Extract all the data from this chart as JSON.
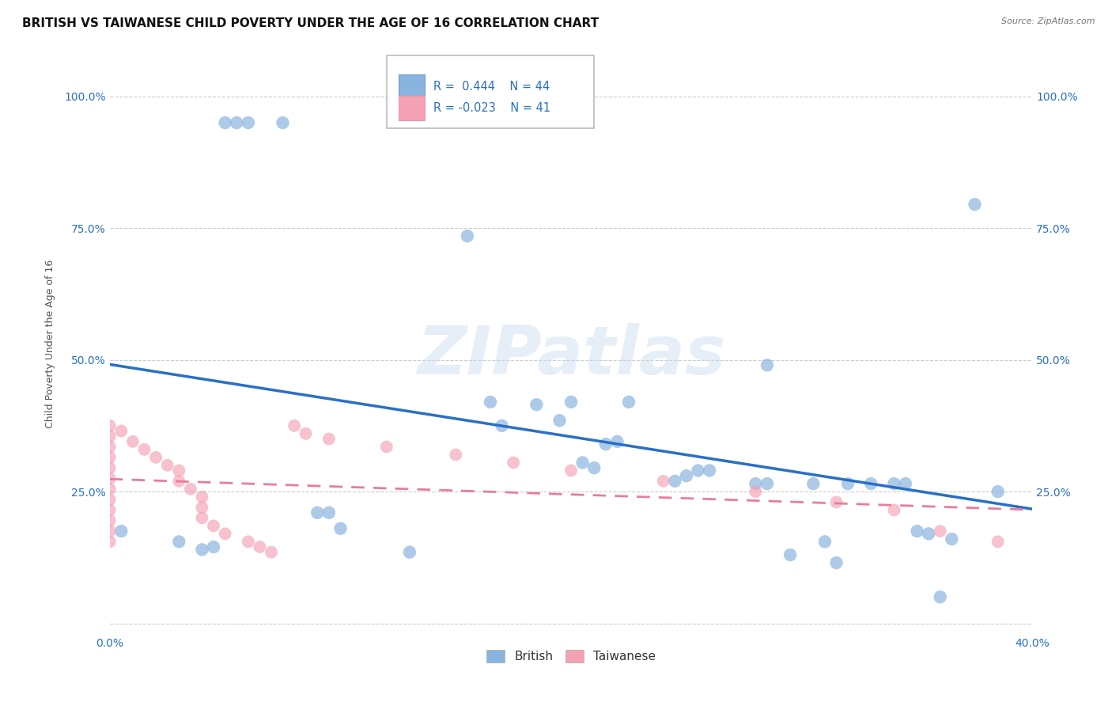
{
  "title": "BRITISH VS TAIWANESE CHILD POVERTY UNDER THE AGE OF 16 CORRELATION CHART",
  "source": "Source: ZipAtlas.com",
  "ylabel": "Child Poverty Under the Age of 16",
  "background_color": "#ffffff",
  "watermark": "ZIPatlas",
  "legend_british": "British",
  "legend_taiwanese": "Taiwanese",
  "r_british": 0.444,
  "n_british": 44,
  "r_taiwanese": -0.023,
  "n_taiwanese": 41,
  "british_color": "#8ab4e0",
  "taiwanese_color": "#f4a0b5",
  "british_line_color": "#2970c4",
  "taiwanese_line_color": "#e87d9b",
  "xlim": [
    0.0,
    0.4
  ],
  "ylim": [
    -0.02,
    1.08
  ],
  "xticks": [
    0.0,
    0.1,
    0.2,
    0.3,
    0.4
  ],
  "yticks": [
    0.0,
    0.25,
    0.5,
    0.75,
    1.0
  ],
  "xtick_labels": [
    "0.0%",
    "",
    "",
    "",
    "40.0%"
  ],
  "ytick_labels": [
    "",
    "25.0%",
    "50.0%",
    "75.0%",
    "100.0%"
  ],
  "british_x": [
    0.005,
    0.03,
    0.04,
    0.045,
    0.05,
    0.055,
    0.06,
    0.075,
    0.09,
    0.095,
    0.1,
    0.13,
    0.155,
    0.165,
    0.17,
    0.185,
    0.195,
    0.2,
    0.205,
    0.21,
    0.215,
    0.22,
    0.225,
    0.245,
    0.25,
    0.255,
    0.26,
    0.28,
    0.285,
    0.295,
    0.305,
    0.31,
    0.315,
    0.32,
    0.33,
    0.34,
    0.35,
    0.355,
    0.285,
    0.345,
    0.36,
    0.365,
    0.375,
    0.385
  ],
  "british_y": [
    0.175,
    0.155,
    0.14,
    0.145,
    0.95,
    0.95,
    0.95,
    0.95,
    0.21,
    0.21,
    0.18,
    0.135,
    0.735,
    0.42,
    0.375,
    0.415,
    0.385,
    0.42,
    0.305,
    0.295,
    0.34,
    0.345,
    0.42,
    0.27,
    0.28,
    0.29,
    0.29,
    0.265,
    0.265,
    0.13,
    0.265,
    0.155,
    0.115,
    0.265,
    0.265,
    0.265,
    0.175,
    0.17,
    0.49,
    0.265,
    0.05,
    0.16,
    0.795,
    0.25
  ],
  "taiwanese_x": [
    0.0,
    0.0,
    0.0,
    0.0,
    0.0,
    0.0,
    0.0,
    0.0,
    0.0,
    0.0,
    0.0,
    0.0,
    0.005,
    0.01,
    0.015,
    0.02,
    0.025,
    0.03,
    0.03,
    0.035,
    0.04,
    0.04,
    0.04,
    0.045,
    0.05,
    0.06,
    0.065,
    0.07,
    0.08,
    0.085,
    0.095,
    0.12,
    0.15,
    0.175,
    0.2,
    0.24,
    0.28,
    0.315,
    0.34,
    0.36,
    0.385
  ],
  "taiwanese_y": [
    0.375,
    0.355,
    0.335,
    0.315,
    0.295,
    0.275,
    0.255,
    0.235,
    0.215,
    0.195,
    0.175,
    0.155,
    0.365,
    0.345,
    0.33,
    0.315,
    0.3,
    0.29,
    0.27,
    0.255,
    0.24,
    0.22,
    0.2,
    0.185,
    0.17,
    0.155,
    0.145,
    0.135,
    0.375,
    0.36,
    0.35,
    0.335,
    0.32,
    0.305,
    0.29,
    0.27,
    0.25,
    0.23,
    0.215,
    0.175,
    0.155
  ],
  "grid_color": "#cccccc",
  "title_fontsize": 11,
  "axis_label_fontsize": 9,
  "tick_fontsize": 10,
  "tick_color": "#2970c4"
}
